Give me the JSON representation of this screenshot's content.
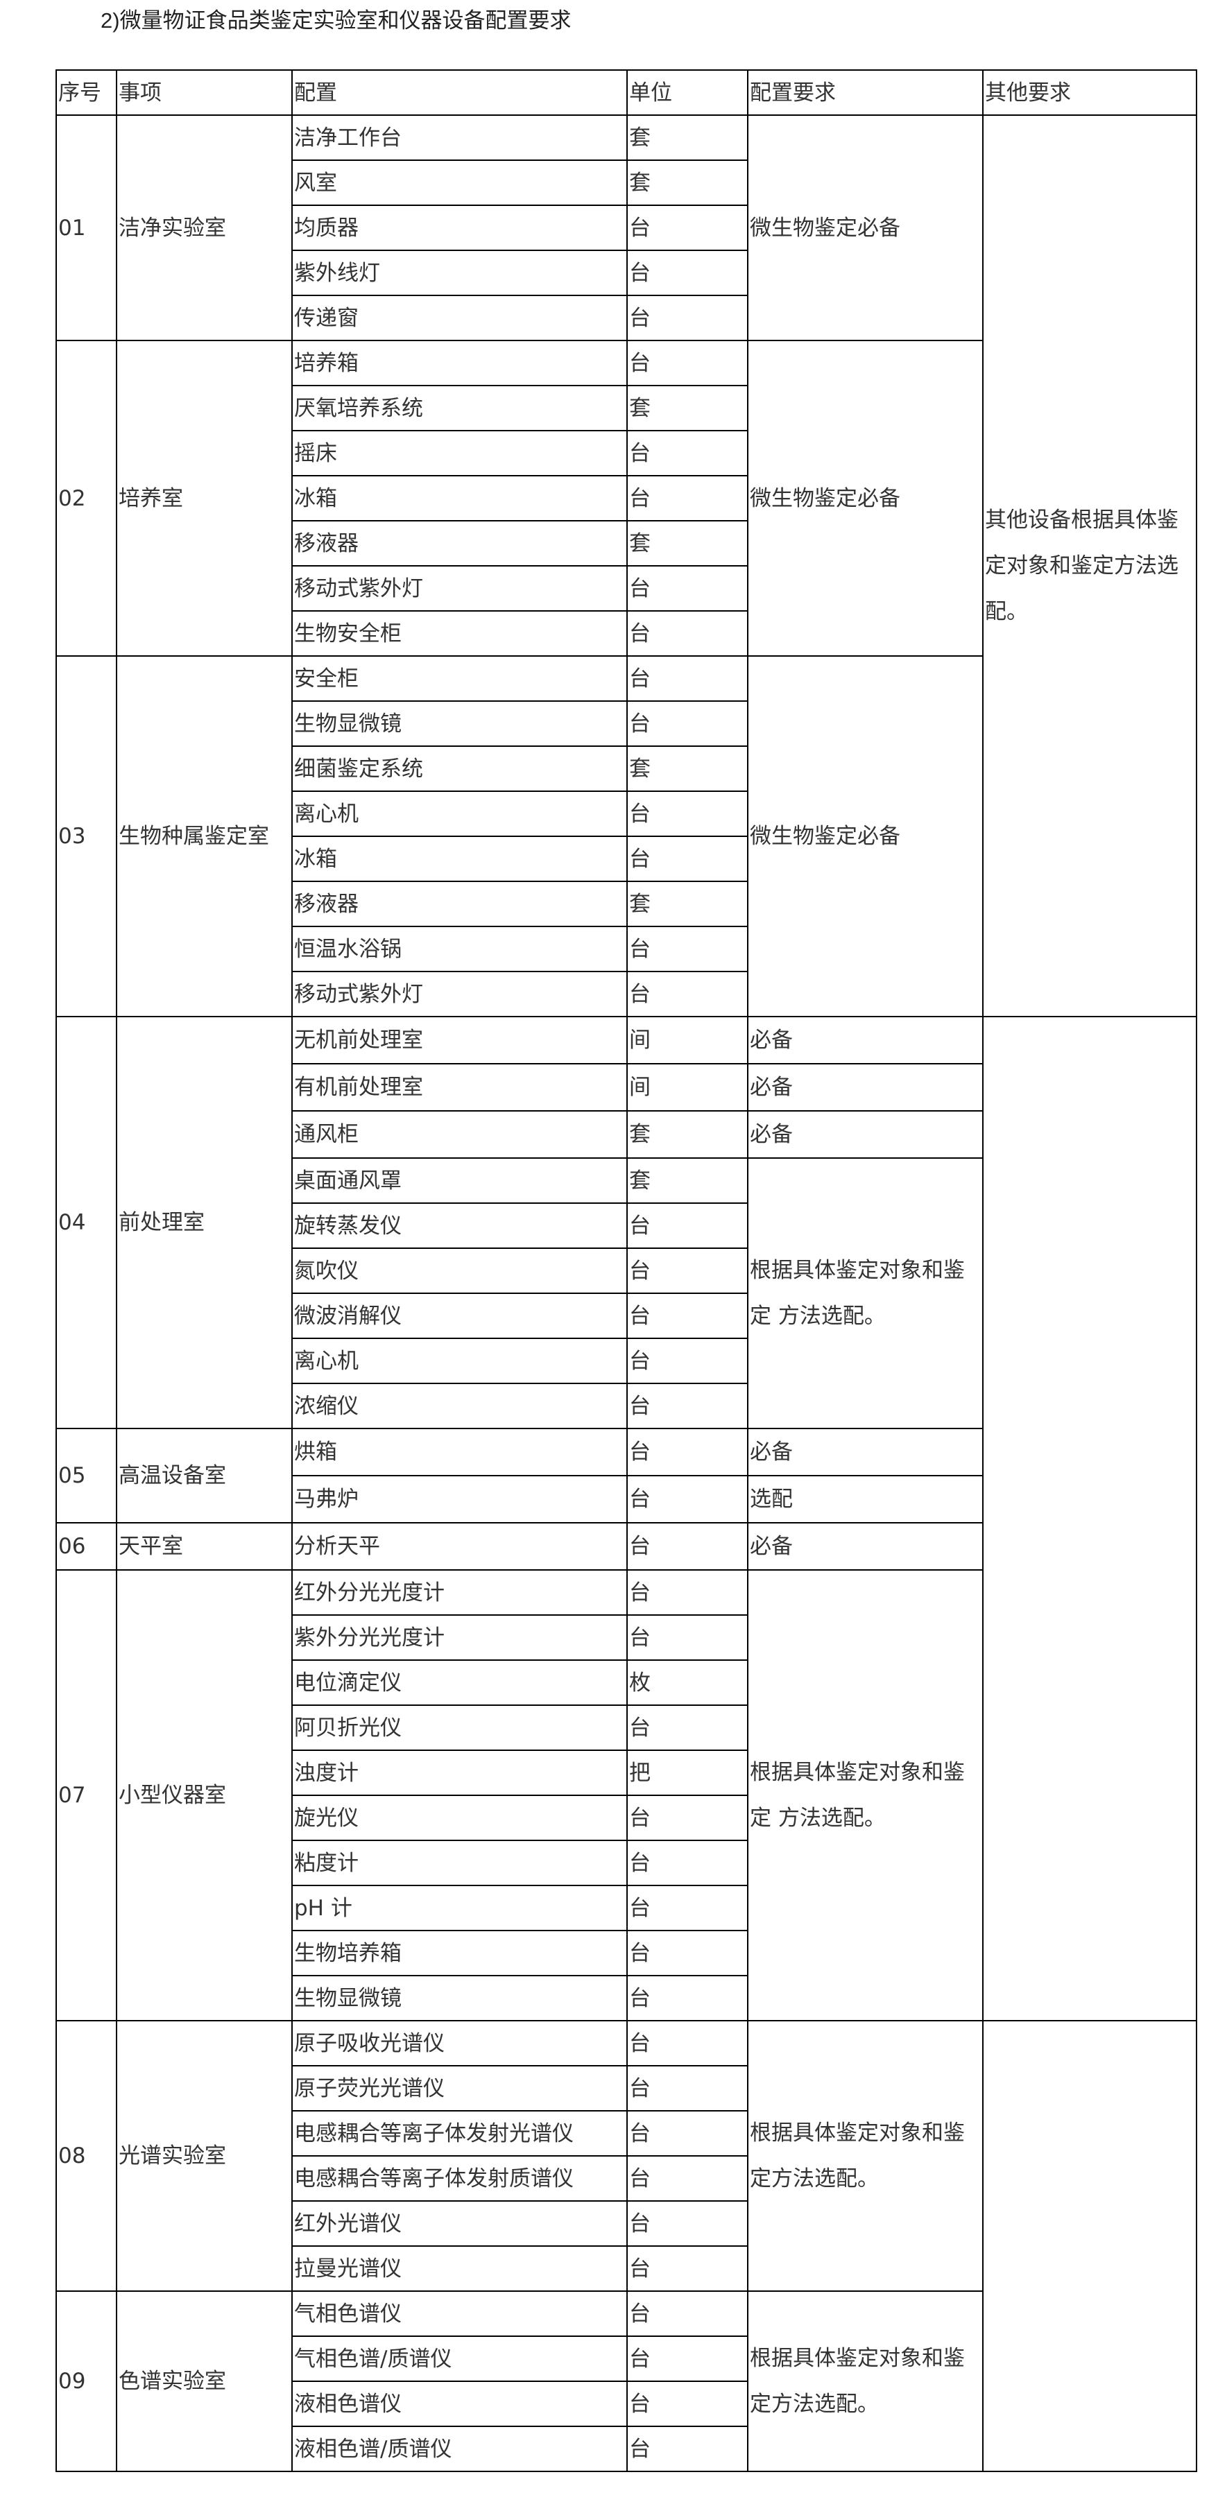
{
  "title": "2)微量物证食品类鉴定实验室和仪器设备配置要求",
  "headers": [
    "序号",
    "事项",
    "配置",
    "单位",
    "配置要求",
    "其他要求"
  ],
  "sections": [
    {
      "id": "01",
      "name": "洁净实验室",
      "items": [
        {
          "name": "洁净工作台",
          "unit": "套"
        },
        {
          "name": "风室",
          "unit": "套"
        },
        {
          "name": "均质器",
          "unit": "台"
        },
        {
          "name": "紫外线灯",
          "unit": "台"
        },
        {
          "name": "传递窗",
          "unit": "台"
        }
      ],
      "requirements": [
        {
          "text": "微生物鉴定必备",
          "rows": 5
        }
      ]
    },
    {
      "id": "02",
      "name": "培养室",
      "items": [
        {
          "name": "培养箱",
          "unit": "台"
        },
        {
          "name": "厌氧培养系统",
          "unit": "套"
        },
        {
          "name": "摇床",
          "unit": "台"
        },
        {
          "name": "冰箱",
          "unit": "台"
        },
        {
          "name": "移液器",
          "unit": "套"
        },
        {
          "name": "移动式紫外灯",
          "unit": "台"
        },
        {
          "name": "生物安全柜",
          "unit": "台"
        }
      ],
      "requirements": [
        {
          "text": "微生物鉴定必备",
          "rows": 7
        }
      ]
    },
    {
      "id": "03",
      "name": "生物种属鉴定室",
      "items": [
        {
          "name": "安全柜",
          "unit": "台"
        },
        {
          "name": "生物显微镜",
          "unit": "台"
        },
        {
          "name": "细菌鉴定系统",
          "unit": "套"
        },
        {
          "name": "离心机",
          "unit": "台"
        },
        {
          "name": "冰箱",
          "unit": "台"
        },
        {
          "name": "移液器",
          "unit": "套"
        },
        {
          "name": "恒温水浴锅",
          "unit": "台"
        },
        {
          "name": "移动式紫外灯",
          "unit": "台"
        }
      ],
      "requirements": [
        {
          "text": "微生物鉴定必备",
          "rows": 8
        }
      ]
    },
    {
      "id": "04",
      "name": "前处理室",
      "items": [
        {
          "name": "无机前处理室",
          "unit": "间"
        },
        {
          "name": "有机前处理室",
          "unit": "间"
        },
        {
          "name": "通风柜",
          "unit": "套"
        },
        {
          "name": "桌面通风罩",
          "unit": "套"
        },
        {
          "name": "旋转蒸发仪",
          "unit": "台"
        },
        {
          "name": "氮吹仪",
          "unit": "台"
        },
        {
          "name": "微波消解仪",
          "unit": "台"
        },
        {
          "name": "离心机",
          "unit": "台"
        },
        {
          "name": "浓缩仪",
          "unit": "台"
        }
      ],
      "requirements": [
        {
          "text": "必备",
          "rows": 1
        },
        {
          "text": "必备",
          "rows": 1
        },
        {
          "text": "必备",
          "rows": 1
        },
        {
          "text": "根据具体鉴定对象和鉴定  方法选配。",
          "rows": 6
        }
      ]
    },
    {
      "id": "05",
      "name": "高温设备室",
      "items": [
        {
          "name": "烘箱",
          "unit": "台"
        },
        {
          "name": "马弗炉",
          "unit": "台"
        }
      ],
      "requirements": [
        {
          "text": "必备",
          "rows": 1
        },
        {
          "text": "选配",
          "rows": 1
        }
      ]
    },
    {
      "id": "06",
      "name": "天平室",
      "items": [
        {
          "name": "分析天平",
          "unit": "台"
        }
      ],
      "requirements": [
        {
          "text": "必备",
          "rows": 1
        }
      ]
    },
    {
      "id": "07",
      "name": "小型仪器室",
      "items": [
        {
          "name": "红外分光光度计",
          "unit": "台"
        },
        {
          "name": "紫外分光光度计",
          "unit": "台"
        },
        {
          "name": "电位滴定仪",
          "unit": "枚"
        },
        {
          "name": "阿贝折光仪",
          "unit": "台"
        },
        {
          "name": "浊度计",
          "unit": "把"
        },
        {
          "name": "旋光仪",
          "unit": "台"
        },
        {
          "name": "粘度计",
          "unit": "台"
        },
        {
          "name": "pH 计",
          "unit": "台"
        },
        {
          "name": "生物培养箱",
          "unit": "台"
        },
        {
          "name": "生物显微镜",
          "unit": "台"
        }
      ],
      "requirements": [
        {
          "text": "根据具体鉴定对象和鉴定  方法选配。",
          "rows": 10
        }
      ]
    },
    {
      "id": "08",
      "name": "光谱实验室",
      "items": [
        {
          "name": "原子吸收光谱仪",
          "unit": "台"
        },
        {
          "name": "原子荧光光谱仪",
          "unit": "台"
        },
        {
          "name": "电感耦合等离子体发射光谱仪",
          "unit": "台"
        },
        {
          "name": "电感耦合等离子体发射质谱仪",
          "unit": "台"
        },
        {
          "name": "红外光谱仪",
          "unit": "台"
        },
        {
          "name": "拉曼光谱仪",
          "unit": "台"
        }
      ],
      "requirements": [
        {
          "text": "根据具体鉴定对象和鉴定方法选配。",
          "rows": 6
        }
      ]
    },
    {
      "id": "09",
      "name": "色谱实验室",
      "items": [
        {
          "name": "气相色谱仪",
          "unit": "台"
        },
        {
          "name": "气相色谱/质谱仪",
          "unit": "台"
        },
        {
          "name": "液相色谱仪",
          "unit": "台"
        },
        {
          "name": "液相色谱/质谱仪",
          "unit": "台"
        }
      ],
      "requirements": [
        {
          "text": "根据具体鉴定对象和鉴定方法选配。",
          "rows": 4
        }
      ]
    }
  ],
  "other_requirements": [
    {
      "text": "其他设备根据具体鉴定对象和鉴定方法选配。",
      "covers": [
        "01",
        "02",
        "03"
      ]
    },
    {
      "text": "",
      "covers": [
        "04",
        "05",
        "06",
        "07"
      ]
    },
    {
      "text": "",
      "covers": [
        "08",
        "09"
      ]
    }
  ]
}
